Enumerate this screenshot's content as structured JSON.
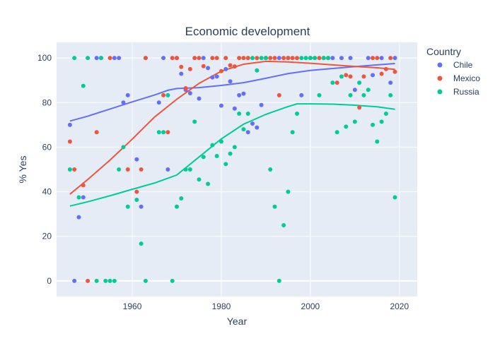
{
  "chart_data": {
    "type": "scatter",
    "title": "Economic development",
    "xlabel": "Year",
    "ylabel": "% Yes",
    "xlim": [
      1943,
      2024
    ],
    "ylim": [
      -7,
      107
    ],
    "xticks": [
      1960,
      1980,
      2000,
      2020
    ],
    "yticks": [
      0,
      20,
      40,
      60,
      80,
      100
    ],
    "grid": true,
    "legend": {
      "title": "Country",
      "placement": "top-right"
    },
    "plot_background": "#e5ecf6",
    "series": [
      {
        "name": "Chile",
        "color": "#636efa",
        "points": [
          [
            1946,
            70
          ],
          [
            1947,
            0
          ],
          [
            1948,
            28.6
          ],
          [
            1949,
            37.5
          ],
          [
            1952,
            100
          ],
          [
            1953,
            100
          ],
          [
            1956,
            100
          ],
          [
            1957,
            100
          ],
          [
            1958,
            80
          ],
          [
            1959,
            83.3
          ],
          [
            1961,
            54.5
          ],
          [
            1962,
            33.3
          ],
          [
            1963,
            100
          ],
          [
            1966,
            80
          ],
          [
            1967,
            100
          ],
          [
            1968,
            50
          ],
          [
            1970,
            100
          ],
          [
            1971,
            92.9
          ],
          [
            1972,
            85.7
          ],
          [
            1973,
            84.2
          ],
          [
            1975,
            81.8
          ],
          [
            1976,
            100
          ],
          [
            1977,
            95.5
          ],
          [
            1978,
            91.3
          ],
          [
            1979,
            91.7
          ],
          [
            1980,
            78.6
          ],
          [
            1981,
            95
          ],
          [
            1982,
            89.5
          ],
          [
            1983,
            77.3
          ],
          [
            1984,
            83.3
          ],
          [
            1985,
            84
          ],
          [
            1986,
            66.7
          ],
          [
            1987,
            70.6
          ],
          [
            1988,
            68.8
          ],
          [
            1989,
            78.9
          ],
          [
            1990,
            100
          ],
          [
            1993,
            100
          ],
          [
            1995,
            100
          ],
          [
            1998,
            83.3
          ],
          [
            2000,
            100
          ],
          [
            2005,
            100
          ],
          [
            2007,
            100
          ],
          [
            2009,
            100
          ],
          [
            2010,
            85.7
          ],
          [
            2013,
            100
          ],
          [
            2014,
            92.3
          ],
          [
            2016,
            100
          ],
          [
            2018,
            88.9
          ],
          [
            2019,
            100
          ]
        ],
        "trend": [
          [
            1946,
            71.7
          ],
          [
            1950,
            73.9
          ],
          [
            1955,
            77.1
          ],
          [
            1960,
            80.3
          ],
          [
            1965,
            83.4
          ],
          [
            1968,
            85.5
          ],
          [
            1970,
            86.3
          ],
          [
            1975,
            86.7
          ],
          [
            1980,
            87.7
          ],
          [
            1985,
            88.9
          ],
          [
            1990,
            90.9
          ],
          [
            1995,
            93
          ],
          [
            2000,
            94.4
          ],
          [
            2005,
            95.3
          ],
          [
            2010,
            96.1
          ],
          [
            2015,
            96.9
          ],
          [
            2019,
            97.5
          ]
        ]
      },
      {
        "name": "Mexico",
        "color": "#ef553b",
        "points": [
          [
            1946,
            62.5
          ],
          [
            1947,
            50
          ],
          [
            1949,
            42.9
          ],
          [
            1950,
            0
          ],
          [
            1952,
            66.7
          ],
          [
            1955,
            100
          ],
          [
            1959,
            50
          ],
          [
            1961,
            40
          ],
          [
            1962,
            50
          ],
          [
            1963,
            100
          ],
          [
            1967,
            83.3
          ],
          [
            1968,
            66.7
          ],
          [
            1969,
            100
          ],
          [
            1970,
            100
          ],
          [
            1971,
            96
          ],
          [
            1972,
            86.4
          ],
          [
            1973,
            95
          ],
          [
            1974,
            100
          ],
          [
            1975,
            100
          ],
          [
            1976,
            96.3
          ],
          [
            1978,
            100
          ],
          [
            1979,
            100
          ],
          [
            1980,
            94.1
          ],
          [
            1981,
            100
          ],
          [
            1982,
            96.7
          ],
          [
            1983,
            96.2
          ],
          [
            1984,
            100
          ],
          [
            1985,
            100
          ],
          [
            1986,
            100
          ],
          [
            1988,
            100
          ],
          [
            1990,
            100
          ],
          [
            1991,
            100
          ],
          [
            1992,
            100
          ],
          [
            1993,
            83.3
          ],
          [
            1994,
            100
          ],
          [
            1995,
            100
          ],
          [
            1996,
            100
          ],
          [
            1997,
            100
          ],
          [
            2000,
            100
          ],
          [
            2001,
            100
          ],
          [
            2002,
            100
          ],
          [
            2003,
            100
          ],
          [
            2004,
            100
          ],
          [
            2006,
            88.9
          ],
          [
            2008,
            92.3
          ],
          [
            2009,
            91.7
          ],
          [
            2011,
            77.8
          ],
          [
            2012,
            91.7
          ],
          [
            2014,
            100
          ],
          [
            2015,
            100
          ],
          [
            2016,
            92.9
          ],
          [
            2017,
            95
          ],
          [
            2018,
            100
          ],
          [
            2019,
            93.8
          ]
        ],
        "trend": [
          [
            1946,
            38.9
          ],
          [
            1950,
            45.5
          ],
          [
            1955,
            54.2
          ],
          [
            1960,
            63.6
          ],
          [
            1965,
            73.5
          ],
          [
            1970,
            81.5
          ],
          [
            1975,
            88.6
          ],
          [
            1980,
            94.1
          ],
          [
            1985,
            97.2
          ],
          [
            1990,
            98.5
          ],
          [
            1995,
            98.2
          ],
          [
            2000,
            97.6
          ],
          [
            2005,
            96.9
          ],
          [
            2010,
            96.2
          ],
          [
            2015,
            95.6
          ],
          [
            2019,
            94.9
          ]
        ]
      },
      {
        "name": "Russia",
        "color": "#00cc96",
        "points": [
          [
            1946,
            50
          ],
          [
            1947,
            100
          ],
          [
            1948,
            37.5
          ],
          [
            1949,
            87.5
          ],
          [
            1950,
            100
          ],
          [
            1952,
            0
          ],
          [
            1953,
            100
          ],
          [
            1954,
            0
          ],
          [
            1955,
            0
          ],
          [
            1956,
            0
          ],
          [
            1957,
            50
          ],
          [
            1958,
            60
          ],
          [
            1959,
            33.3
          ],
          [
            1961,
            36.4
          ],
          [
            1962,
            16.7
          ],
          [
            1963,
            0
          ],
          [
            1966,
            66.7
          ],
          [
            1967,
            66.7
          ],
          [
            1968,
            83.3
          ],
          [
            1969,
            0
          ],
          [
            1970,
            33.3
          ],
          [
            1971,
            37
          ],
          [
            1972,
            50
          ],
          [
            1973,
            50
          ],
          [
            1974,
            71.4
          ],
          [
            1975,
            45.5
          ],
          [
            1976,
            55.6
          ],
          [
            1977,
            43.5
          ],
          [
            1978,
            60.9
          ],
          [
            1979,
            56
          ],
          [
            1980,
            62.5
          ],
          [
            1981,
            52.4
          ],
          [
            1982,
            57.1
          ],
          [
            1983,
            60
          ],
          [
            1984,
            75
          ],
          [
            1985,
            68
          ],
          [
            1986,
            75
          ],
          [
            1987,
            100
          ],
          [
            1988,
            94.4
          ],
          [
            1989,
            100
          ],
          [
            1990,
            100
          ],
          [
            1991,
            50
          ],
          [
            1992,
            33.3
          ],
          [
            1993,
            0
          ],
          [
            1994,
            25
          ],
          [
            1995,
            40
          ],
          [
            1996,
            66.7
          ],
          [
            1997,
            75
          ],
          [
            1998,
            100
          ],
          [
            1999,
            100
          ],
          [
            2000,
            100
          ],
          [
            2001,
            100
          ],
          [
            2002,
            83.3
          ],
          [
            2003,
            100
          ],
          [
            2004,
            100
          ],
          [
            2005,
            88.9
          ],
          [
            2006,
            66.7
          ],
          [
            2007,
            91.7
          ],
          [
            2008,
            69.2
          ],
          [
            2009,
            83.3
          ],
          [
            2010,
            71.4
          ],
          [
            2011,
            88.9
          ],
          [
            2012,
            83.3
          ],
          [
            2013,
            85.7
          ],
          [
            2014,
            70
          ],
          [
            2015,
            62.5
          ],
          [
            2016,
            71.4
          ],
          [
            2017,
            75
          ],
          [
            2018,
            83.3
          ],
          [
            2019,
            37.5
          ]
        ],
        "trend": [
          [
            1946,
            33.6
          ],
          [
            1950,
            35.5
          ],
          [
            1955,
            38.2
          ],
          [
            1960,
            41.1
          ],
          [
            1965,
            43.9
          ],
          [
            1970,
            47.5
          ],
          [
            1975,
            55.6
          ],
          [
            1980,
            63.7
          ],
          [
            1985,
            70.3
          ],
          [
            1990,
            74.7
          ],
          [
            1995,
            78.2
          ],
          [
            1997,
            79.4
          ],
          [
            2000,
            79.4
          ],
          [
            2005,
            79.3
          ],
          [
            2010,
            78.8
          ],
          [
            2015,
            78.1
          ],
          [
            2019,
            77
          ]
        ]
      }
    ]
  }
}
